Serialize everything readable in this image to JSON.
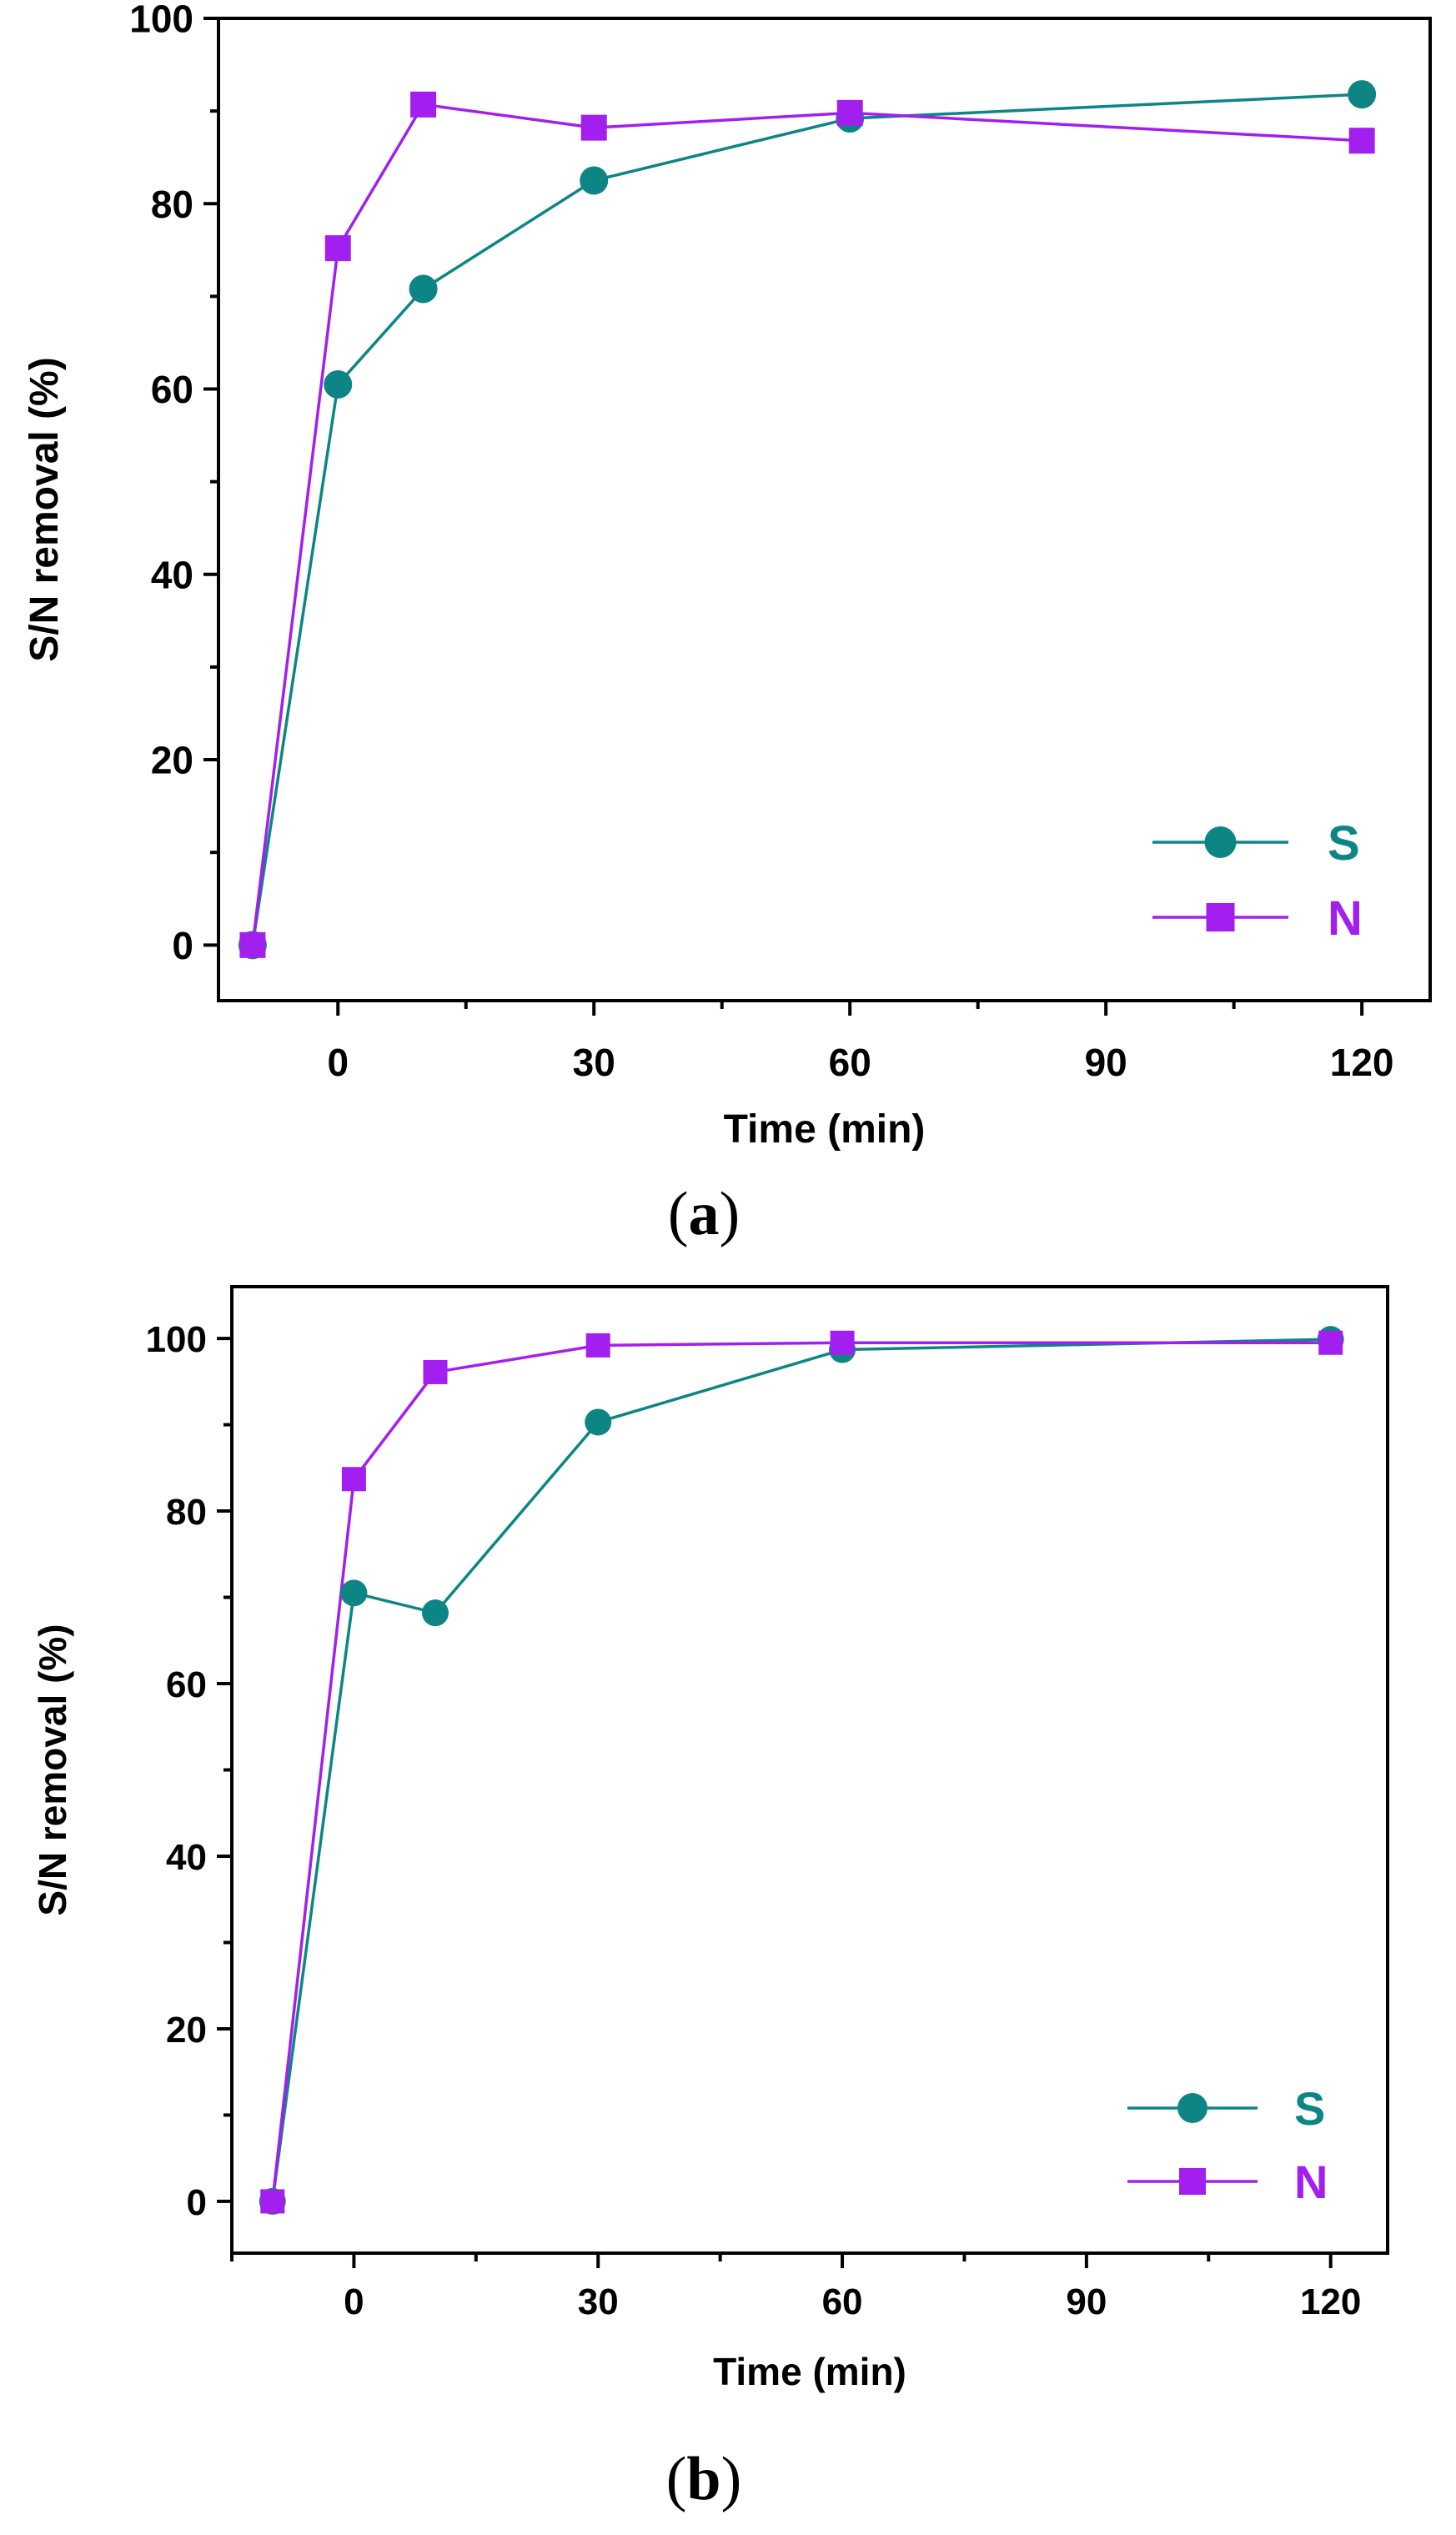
{
  "colors": {
    "S": "#0e8585",
    "N": "#a21ff0",
    "axis": "#000000",
    "background": "#ffffff"
  },
  "captions": [
    "(a)",
    "(b)"
  ],
  "chart_data": [
    {
      "type": "line",
      "panel": "a",
      "title": "",
      "xlabel": "Time (min)",
      "ylabel": "S/N removal (%)",
      "xlim": [
        -14,
        128
      ],
      "ylim": [
        -6,
        100
      ],
      "xticks": [
        0,
        30,
        60,
        90,
        120
      ],
      "yticks": [
        0,
        20,
        40,
        60,
        80,
        100
      ],
      "grid": false,
      "legend_position": "bottom-right",
      "series": [
        {
          "name": "S",
          "marker": "circle",
          "x": [
            -10,
            0,
            10,
            30,
            60,
            120
          ],
          "y": [
            0,
            60.5,
            70.8,
            82.5,
            89.2,
            91.8
          ]
        },
        {
          "name": "N",
          "marker": "square",
          "x": [
            -10,
            0,
            10,
            30,
            60,
            120
          ],
          "y": [
            0,
            75.2,
            90.7,
            88.2,
            89.8,
            86.8
          ]
        }
      ]
    },
    {
      "type": "line",
      "panel": "b",
      "title": "",
      "xlabel": "Time (min)",
      "ylabel": "S/N removal (%)",
      "xlim": [
        -15,
        127
      ],
      "ylim": [
        -6,
        106
      ],
      "xticks": [
        0,
        30,
        60,
        90,
        120
      ],
      "yticks": [
        0,
        20,
        40,
        60,
        80,
        100
      ],
      "grid": false,
      "legend_position": "bottom-right",
      "series": [
        {
          "name": "S",
          "marker": "circle",
          "x": [
            -10,
            0,
            10,
            30,
            60,
            120
          ],
          "y": [
            0,
            70.5,
            68.2,
            90.3,
            98.7,
            99.9
          ]
        },
        {
          "name": "N",
          "marker": "square",
          "x": [
            -10,
            0,
            10,
            30,
            60,
            120
          ],
          "y": [
            0,
            83.7,
            96.1,
            99.2,
            99.5,
            99.5
          ]
        }
      ]
    }
  ]
}
